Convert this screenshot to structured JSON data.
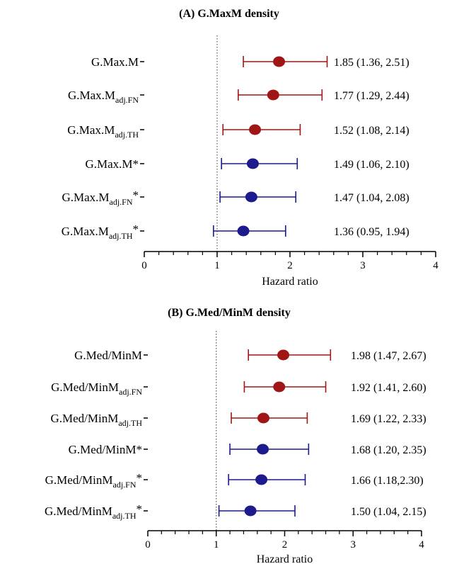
{
  "colors": {
    "red": "#a01616",
    "blue": "#1c1a8c",
    "axis": "#000000",
    "refline": "#555555"
  },
  "chart_data": [
    {
      "type": "forest",
      "title": "(A) G.MaxM density",
      "xlabel": "Hazard ratio",
      "xlim": [
        0,
        4
      ],
      "xticks": [
        "0",
        "1",
        "2",
        "3",
        "4"
      ],
      "reference_line": 1,
      "rows": [
        {
          "label": "G.Max.M",
          "sub": "",
          "star": "",
          "hr": 1.85,
          "lo": 1.36,
          "hi": 2.51,
          "text": "1.85 (1.36, 2.51)",
          "color": "red"
        },
        {
          "label": "G.Max.M",
          "sub": "adj.FN",
          "star": "",
          "hr": 1.77,
          "lo": 1.29,
          "hi": 2.44,
          "text": "1.77 (1.29, 2.44)",
          "color": "red"
        },
        {
          "label": "G.Max.M",
          "sub": "adj.TH",
          "star": "",
          "hr": 1.52,
          "lo": 1.08,
          "hi": 2.14,
          "text": "1.52 (1.08, 2.14)",
          "color": "red"
        },
        {
          "label": "G.Max.M",
          "sub": "",
          "star": "*",
          "hr": 1.49,
          "lo": 1.06,
          "hi": 2.1,
          "text": "1.49 (1.06, 2.10)",
          "color": "blue"
        },
        {
          "label": "G.Max.M",
          "sub": "adj.FN",
          "star": "*",
          "hr": 1.47,
          "lo": 1.04,
          "hi": 2.08,
          "text": "1.47 (1.04, 2.08)",
          "color": "blue"
        },
        {
          "label": "G.Max.M",
          "sub": "adj.TH",
          "star": "*",
          "hr": 1.36,
          "lo": 0.95,
          "hi": 1.94,
          "text": "1.36 (0.95, 1.94)",
          "color": "blue"
        }
      ]
    },
    {
      "type": "forest",
      "title": "(B) G.Med/MinM density",
      "xlabel": "Hazard ratio",
      "xlim": [
        0,
        4
      ],
      "xticks": [
        "0",
        "1",
        "2",
        "3",
        "4"
      ],
      "reference_line": 1,
      "rows": [
        {
          "label": "G.Med/MinM",
          "sub": "",
          "star": "",
          "hr": 1.98,
          "lo": 1.47,
          "hi": 2.67,
          "text": "1.98 (1.47, 2.67)",
          "color": "red"
        },
        {
          "label": "G.Med/MinM",
          "sub": "adj.FN",
          "star": "",
          "hr": 1.92,
          "lo": 1.41,
          "hi": 2.6,
          "text": "1.92 (1.41, 2.60)",
          "color": "red"
        },
        {
          "label": "G.Med/MinM",
          "sub": "adj.TH",
          "star": "",
          "hr": 1.69,
          "lo": 1.22,
          "hi": 2.33,
          "text": "1.69 (1.22, 2.33)",
          "color": "red"
        },
        {
          "label": "G.Med/MinM",
          "sub": "",
          "star": "*",
          "hr": 1.68,
          "lo": 1.2,
          "hi": 2.35,
          "text": "1.68 (1.20, 2.35)",
          "color": "blue"
        },
        {
          "label": "G.Med/MinM",
          "sub": "adj.FN",
          "star": "*",
          "hr": 1.66,
          "lo": 1.18,
          "hi": 2.3,
          "text": "1.66 (1.18,2.30)",
          "color": "blue"
        },
        {
          "label": "G.Med/MinM",
          "sub": "adj.TH",
          "star": "*",
          "hr": 1.5,
          "lo": 1.04,
          "hi": 2.15,
          "text": "1.50 (1.04, 2.15)",
          "color": "blue"
        }
      ]
    }
  ]
}
